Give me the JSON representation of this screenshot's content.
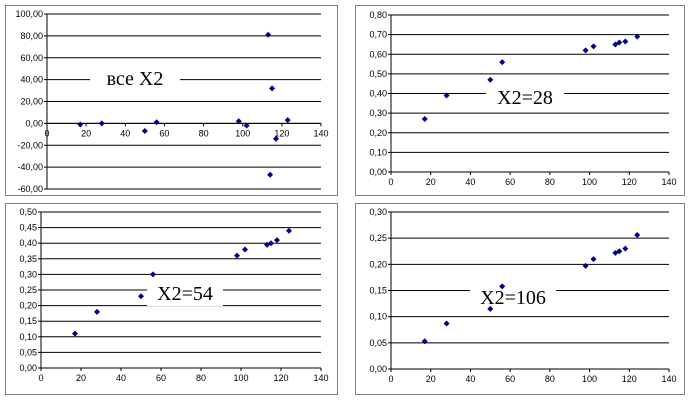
{
  "colors": {
    "point": "#00008B",
    "grid": "#000000",
    "frame": "#808080",
    "plot_bg": "#ffffff"
  },
  "chart_data": [
    {
      "type": "scatter",
      "annotation": "все X2",
      "xlim": [
        0,
        140
      ],
      "ylim": [
        -60,
        100
      ],
      "x_ticks": [
        0,
        20,
        40,
        60,
        80,
        100,
        120,
        140
      ],
      "x_tick_labels": [
        "0",
        "20",
        "40",
        "60",
        "80",
        "100",
        "120",
        "140"
      ],
      "y_ticks": [
        -60,
        -40,
        -20,
        0,
        20,
        40,
        60,
        80,
        100
      ],
      "y_tick_labels": [
        "-60,00",
        "-40,00",
        "-20,00",
        "0,00",
        "20,00",
        "40,00",
        "60,00",
        "80,00",
        "100,00"
      ],
      "grid": true,
      "points": [
        {
          "x": 17,
          "y": -1
        },
        {
          "x": 28,
          "y": 0
        },
        {
          "x": 50,
          "y": -7
        },
        {
          "x": 56,
          "y": 1
        },
        {
          "x": 98,
          "y": 2
        },
        {
          "x": 102,
          "y": -2
        },
        {
          "x": 113,
          "y": 81
        },
        {
          "x": 114,
          "y": -47
        },
        {
          "x": 115,
          "y": 32
        },
        {
          "x": 117,
          "y": -14
        },
        {
          "x": 123,
          "y": 3
        }
      ]
    },
    {
      "type": "scatter",
      "annotation": "X2=28",
      "xlim": [
        0,
        140
      ],
      "ylim": [
        0,
        0.8
      ],
      "x_ticks": [
        0,
        20,
        40,
        60,
        80,
        100,
        120,
        140
      ],
      "x_tick_labels": [
        "0",
        "20",
        "40",
        "60",
        "80",
        "100",
        "120",
        "140"
      ],
      "y_ticks": [
        0,
        0.1,
        0.2,
        0.3,
        0.4,
        0.5,
        0.6,
        0.7,
        0.8
      ],
      "y_tick_labels": [
        "0,00",
        "0,10",
        "0,20",
        "0,30",
        "0,40",
        "0,50",
        "0,60",
        "0,70",
        "0,80"
      ],
      "grid": true,
      "points": [
        {
          "x": 17,
          "y": 0.27
        },
        {
          "x": 28,
          "y": 0.39
        },
        {
          "x": 50,
          "y": 0.47
        },
        {
          "x": 56,
          "y": 0.56
        },
        {
          "x": 98,
          "y": 0.62
        },
        {
          "x": 102,
          "y": 0.64
        },
        {
          "x": 113,
          "y": 0.65
        },
        {
          "x": 115,
          "y": 0.66
        },
        {
          "x": 118,
          "y": 0.665
        },
        {
          "x": 124,
          "y": 0.69
        }
      ]
    },
    {
      "type": "scatter",
      "annotation": "X2=54",
      "xlim": [
        0,
        140
      ],
      "ylim": [
        0,
        0.5
      ],
      "x_ticks": [
        0,
        20,
        40,
        60,
        80,
        100,
        120,
        140
      ],
      "x_tick_labels": [
        "0",
        "20",
        "40",
        "60",
        "80",
        "100",
        "120",
        "140"
      ],
      "y_ticks": [
        0,
        0.05,
        0.1,
        0.15,
        0.2,
        0.25,
        0.3,
        0.35,
        0.4,
        0.45,
        0.5
      ],
      "y_tick_labels": [
        "0,00",
        "0,05",
        "0,10",
        "0,15",
        "0,20",
        "0,25",
        "0,30",
        "0,35",
        "0,40",
        "0,45",
        "0,50"
      ],
      "grid": true,
      "points": [
        {
          "x": 17,
          "y": 0.11
        },
        {
          "x": 28,
          "y": 0.18
        },
        {
          "x": 50,
          "y": 0.23
        },
        {
          "x": 56,
          "y": 0.3
        },
        {
          "x": 98,
          "y": 0.36
        },
        {
          "x": 102,
          "y": 0.38
        },
        {
          "x": 113,
          "y": 0.395
        },
        {
          "x": 115,
          "y": 0.4
        },
        {
          "x": 118,
          "y": 0.41
        },
        {
          "x": 124,
          "y": 0.44
        }
      ]
    },
    {
      "type": "scatter",
      "annotation": "X2=106",
      "xlim": [
        0,
        140
      ],
      "ylim": [
        0,
        0.3
      ],
      "x_ticks": [
        0,
        20,
        40,
        60,
        80,
        100,
        120,
        140
      ],
      "x_tick_labels": [
        "0",
        "20",
        "40",
        "60",
        "80",
        "100",
        "120",
        "140"
      ],
      "y_ticks": [
        0,
        0.05,
        0.1,
        0.15,
        0.2,
        0.25,
        0.3
      ],
      "y_tick_labels": [
        "0,00",
        "0,05",
        "0,10",
        "0,15",
        "0,20",
        "0,25",
        "0,30"
      ],
      "grid": true,
      "points": [
        {
          "x": 17,
          "y": 0.053
        },
        {
          "x": 28,
          "y": 0.087
        },
        {
          "x": 50,
          "y": 0.115
        },
        {
          "x": 56,
          "y": 0.158
        },
        {
          "x": 98,
          "y": 0.197
        },
        {
          "x": 102,
          "y": 0.21
        },
        {
          "x": 113,
          "y": 0.222
        },
        {
          "x": 115,
          "y": 0.225
        },
        {
          "x": 118,
          "y": 0.23
        },
        {
          "x": 124,
          "y": 0.256
        }
      ]
    }
  ]
}
